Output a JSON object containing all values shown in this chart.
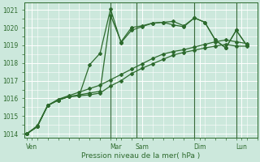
{
  "xlabel": "Pression niveau de la mer( hPa )",
  "bg_color": "#cce8dc",
  "grid_color": "#ffffff",
  "line_color": "#2d6a2d",
  "vline_color": "#3a6a3a",
  "ylim": [
    1013.8,
    1021.4
  ],
  "yticks": [
    1014,
    1015,
    1016,
    1017,
    1018,
    1019,
    1020,
    1021
  ],
  "xlim": [
    -0.2,
    22.0
  ],
  "x_ticks_labels": [
    "Ven",
    "Mar",
    "Sam",
    "Dim",
    "Lun"
  ],
  "x_ticks_pos": [
    0.5,
    8.5,
    11.0,
    16.5,
    20.5
  ],
  "vline_positions": [
    8,
    10.5,
    16,
    20
  ],
  "line1_x": [
    0,
    1,
    2,
    3,
    4,
    5,
    6,
    7,
    8,
    9,
    10,
    11,
    12,
    13,
    14,
    15,
    16,
    17,
    18,
    19,
    20,
    21
  ],
  "line1_y": [
    1014.0,
    1014.4,
    1015.6,
    1015.9,
    1016.1,
    1016.2,
    1016.3,
    1016.4,
    1020.7,
    1019.2,
    1020.0,
    1020.1,
    1020.25,
    1020.3,
    1020.15,
    1020.05,
    1020.55,
    1020.3,
    1019.3,
    1018.85,
    1019.85,
    1019.0
  ],
  "line2_x": [
    0,
    1,
    2,
    3,
    4,
    5,
    6,
    7,
    8,
    9,
    10,
    11,
    12,
    13,
    14,
    15,
    16,
    17,
    18,
    19,
    20,
    21
  ],
  "line2_y": [
    1014.0,
    1014.4,
    1015.6,
    1015.9,
    1016.1,
    1016.15,
    1017.9,
    1018.55,
    1021.05,
    1019.15,
    1019.85,
    1020.05,
    1020.25,
    1020.3,
    1020.35,
    1020.1,
    1020.55,
    1020.3,
    1019.3,
    1018.85,
    1019.85,
    1019.0
  ],
  "line3_x": [
    0,
    1,
    2,
    3,
    4,
    5,
    6,
    7,
    8,
    9,
    10,
    11,
    12,
    13,
    14,
    15,
    16,
    17,
    18,
    19,
    20,
    21
  ],
  "line3_y": [
    1014.0,
    1014.4,
    1015.6,
    1015.9,
    1016.1,
    1016.15,
    1016.2,
    1016.3,
    1016.7,
    1017.0,
    1017.4,
    1017.7,
    1017.95,
    1018.2,
    1018.45,
    1018.6,
    1018.72,
    1018.85,
    1018.95,
    1019.05,
    1018.95,
    1018.95
  ],
  "line4_x": [
    0,
    1,
    2,
    3,
    4,
    5,
    6,
    7,
    8,
    9,
    10,
    11,
    12,
    13,
    14,
    15,
    16,
    17,
    18,
    19,
    20,
    21
  ],
  "line4_y": [
    1014.0,
    1014.45,
    1015.6,
    1015.95,
    1016.15,
    1016.35,
    1016.55,
    1016.75,
    1017.05,
    1017.35,
    1017.65,
    1017.95,
    1018.25,
    1018.5,
    1018.65,
    1018.75,
    1018.9,
    1019.05,
    1019.2,
    1019.3,
    1019.2,
    1019.1
  ],
  "marker": "D",
  "marker_size": 2.0,
  "linewidth": 0.9,
  "tick_fontsize": 5.5,
  "xlabel_fontsize": 6.5
}
